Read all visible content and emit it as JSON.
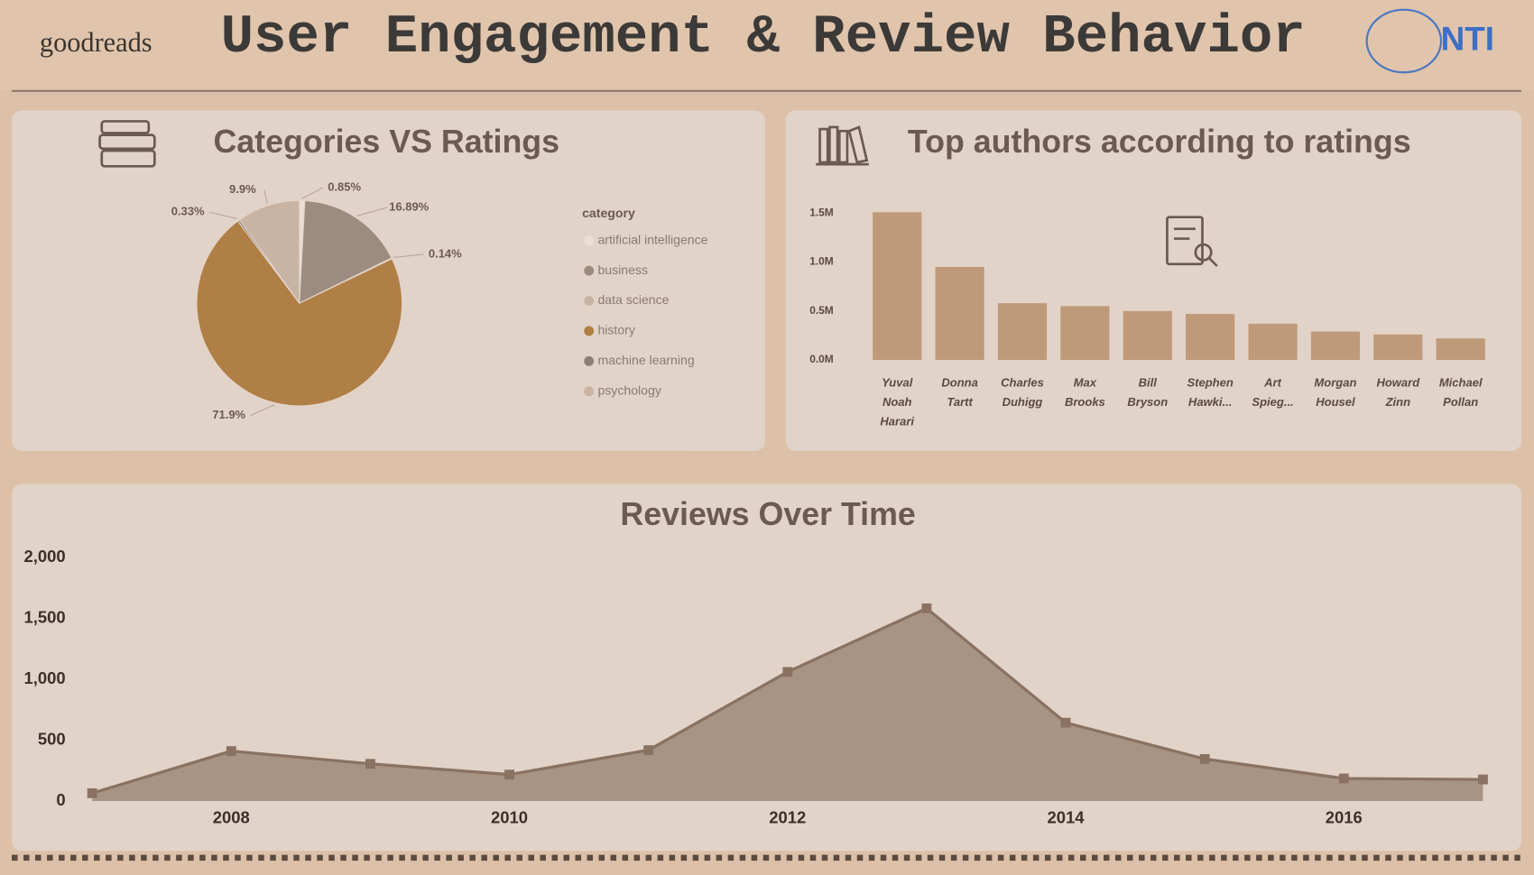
{
  "header": {
    "brand": "goodreads",
    "title": "User Engagement & Review Behavior",
    "logo": "NTI"
  },
  "chart_data": [
    {
      "type": "pie",
      "title": "Categories VS Ratings",
      "legend_title": "category",
      "categories": [
        "artificial intelligence",
        "business",
        "data science",
        "history",
        "machine learning",
        "psychology"
      ],
      "values": [
        0.85,
        16.89,
        0.14,
        71.9,
        0.33,
        9.9
      ],
      "value_labels": [
        "0.85%",
        "16.89%",
        "0.14%",
        "71.9%",
        "0.33%",
        "9.9%"
      ],
      "colors": [
        "#eadfd4",
        "#9c8b7e",
        "#c8b4a4",
        "#b07f45",
        "#8e7f74",
        "#c9b3a3"
      ],
      "legend": "right"
    },
    {
      "type": "bar",
      "title": "Top authors according to ratings",
      "categories": [
        "Yuval Noah Harari",
        "Donna Tartt",
        "Charles Duhigg",
        "Max Brooks",
        "Bill Bryson",
        "Stephen Hawki...",
        "Art Spieg...",
        "Morgan Housel",
        "Howard Zinn",
        "Michael Pollan"
      ],
      "values": [
        1510000,
        950000,
        580000,
        550000,
        500000,
        470000,
        370000,
        290000,
        260000,
        220000
      ],
      "color": "#bf9a7a",
      "ylim": [
        0,
        1600000
      ],
      "yticks": [
        {
          "value": 0,
          "label": "0.0M"
        },
        {
          "value": 500000,
          "label": "0.5M"
        },
        {
          "value": 1000000,
          "label": "1.0M"
        },
        {
          "value": 1500000,
          "label": "1.5M"
        }
      ],
      "grid": false
    },
    {
      "type": "area",
      "title": "Reviews Over Time",
      "x": [
        2007,
        2008,
        2009,
        2010,
        2011,
        2012,
        2013,
        2014,
        2015,
        2016,
        2017
      ],
      "values": [
        64,
        410,
        305,
        217,
        418,
        1060,
        1582,
        643,
        345,
        185,
        177
      ],
      "color": "#a89484",
      "line_color": "#8a7263",
      "xlim": [
        2006.9,
        2017.1
      ],
      "ylim": [
        0,
        2000
      ],
      "xticks": [
        2008,
        2010,
        2012,
        2014,
        2016
      ],
      "yticks": [
        0,
        500,
        {
          "value": 1000,
          "label": "1,000"
        },
        {
          "value": 1500,
          "label": "1,500"
        },
        {
          "value": 2000,
          "label": "2,000"
        }
      ],
      "grid": false
    }
  ]
}
